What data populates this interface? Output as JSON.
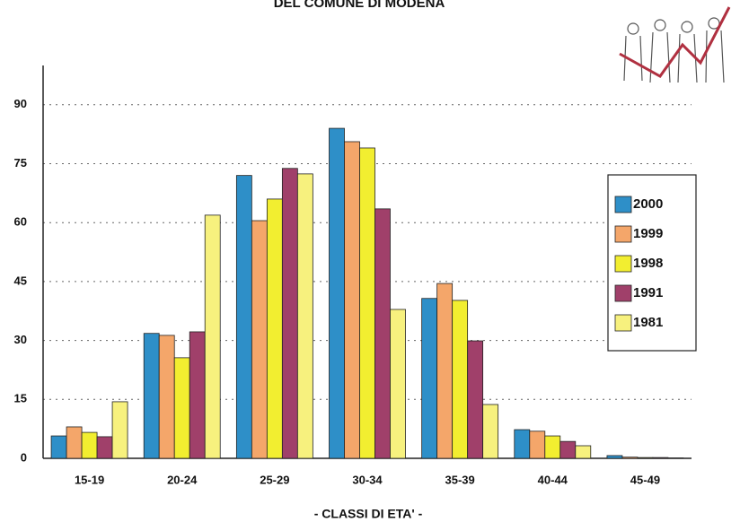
{
  "chart_data": {
    "type": "bar",
    "title": "DEL COMUNE DI MODENA",
    "x_label": "- CLASSI DI ETA' -",
    "categories": [
      "15-19",
      "20-24",
      "25-29",
      "30-34",
      "35-39",
      "40-44",
      "45-49"
    ],
    "series": [
      {
        "name": "2000",
        "color": "#2e8fc8",
        "values": [
          5.7,
          31.8,
          72,
          84,
          40.7,
          7.3,
          0.7
        ]
      },
      {
        "name": "1999",
        "color": "#f4a66a",
        "values": [
          8,
          31.3,
          60.5,
          80.6,
          44.5,
          6.9,
          0.3
        ]
      },
      {
        "name": "1998",
        "color": "#f2ee30",
        "values": [
          6.6,
          25.6,
          66,
          79,
          40.2,
          5.7,
          0.2
        ]
      },
      {
        "name": "1991",
        "color": "#a0406a",
        "values": [
          5.5,
          32.2,
          73.8,
          63.5,
          29.9,
          4.3,
          0.2
        ]
      },
      {
        "name": "1981",
        "color": "#f7f17e",
        "values": [
          14.4,
          61.9,
          72.4,
          37.9,
          13.7,
          3.2,
          0.1
        ]
      }
    ],
    "ylim": [
      0,
      100
    ],
    "yticks": [
      0,
      15,
      30,
      45,
      60,
      75,
      90
    ],
    "grid": true,
    "legend": "right"
  }
}
